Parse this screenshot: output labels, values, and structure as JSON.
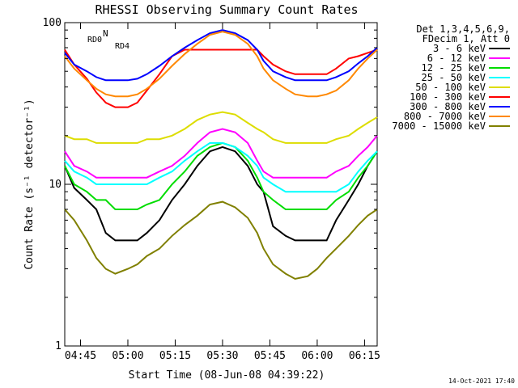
{
  "chart_data": {
    "type": "line",
    "title": "RHESSI Observing Summary Count Rates",
    "xlabel": "Start Time (08-Jun-08 04:39:22)",
    "ylabel": "Count Rate (s⁻¹ detector⁻¹)",
    "y_scale": "log",
    "ylim": [
      1,
      100
    ],
    "xlim_minutes_after_0440": [
      0,
      99
    ],
    "x_tick_labels": [
      "04:45",
      "05:00",
      "05:15",
      "05:30",
      "05:45",
      "06:00",
      "06:15"
    ],
    "x_tick_minutes": [
      5,
      20,
      35,
      50,
      65,
      80,
      95
    ],
    "y_tick_labels": [
      "1",
      "10",
      "100"
    ],
    "y_tick_values": [
      1,
      10,
      100
    ],
    "legend_position": "top-right",
    "legend_header": [
      "Det 1,3,4,5,6,9,",
      "FDecim 1, Att 0"
    ],
    "annotations": [
      {
        "text": "N",
        "color": "#00c000"
      },
      {
        "text": "RD0",
        "color": "#00a000"
      },
      {
        "text": "RD4",
        "color": "#00a000"
      }
    ],
    "series": [
      {
        "name": "3 - 6 keV",
        "color": "#000000",
        "x": [
          0,
          3,
          7,
          10,
          13,
          16,
          20,
          23,
          26,
          30,
          34,
          38,
          42,
          46,
          50,
          54,
          58,
          61,
          63,
          66,
          70,
          73,
          77,
          80,
          83,
          86,
          90,
          93,
          96,
          99
        ],
        "y": [
          13,
          9.5,
          8,
          7,
          5,
          4.5,
          4.5,
          4.5,
          5,
          6,
          8,
          10,
          13,
          16,
          17,
          16,
          13,
          10,
          9,
          5.5,
          4.8,
          4.5,
          4.5,
          4.5,
          4.5,
          6,
          8,
          10,
          13,
          16
        ]
      },
      {
        "name": "6 - 12 keV",
        "color": "#ff00ff",
        "x": [
          0,
          3,
          7,
          10,
          13,
          16,
          20,
          23,
          26,
          30,
          34,
          38,
          42,
          46,
          50,
          54,
          58,
          61,
          63,
          66,
          70,
          73,
          77,
          80,
          83,
          86,
          90,
          93,
          96,
          99
        ],
        "y": [
          16,
          13,
          12,
          11,
          11,
          11,
          11,
          11,
          11,
          12,
          13,
          15,
          18,
          21,
          22,
          21,
          18,
          14,
          12,
          11,
          11,
          11,
          11,
          11,
          11,
          12,
          13,
          15,
          17,
          20
        ]
      },
      {
        "name": "12 - 25 keV",
        "color": "#00dd00",
        "x": [
          0,
          3,
          7,
          10,
          13,
          16,
          20,
          23,
          26,
          30,
          34,
          38,
          42,
          46,
          50,
          54,
          58,
          61,
          63,
          66,
          70,
          73,
          77,
          80,
          83,
          86,
          90,
          93,
          96,
          99
        ],
        "y": [
          13,
          10,
          9,
          8,
          8,
          7,
          7,
          7,
          7.5,
          8,
          10,
          12,
          15,
          17,
          18,
          17,
          14,
          11,
          9,
          8,
          7,
          7,
          7,
          7,
          7,
          8,
          9,
          11,
          13,
          16
        ]
      },
      {
        "name": "25 - 50 keV",
        "color": "#00ffff",
        "x": [
          0,
          3,
          7,
          10,
          13,
          16,
          20,
          23,
          26,
          30,
          34,
          38,
          42,
          46,
          50,
          54,
          58,
          61,
          63,
          66,
          70,
          73,
          77,
          80,
          83,
          86,
          90,
          93,
          96,
          99
        ],
        "y": [
          14,
          12,
          11,
          10,
          10,
          10,
          10,
          10,
          10,
          11,
          12,
          14,
          16,
          18,
          18,
          17,
          15,
          13,
          11,
          10,
          9,
          9,
          9,
          9,
          9,
          9,
          10,
          12,
          14,
          16
        ]
      },
      {
        "name": "50 - 100 keV",
        "color": "#dddd00",
        "x": [
          0,
          3,
          7,
          10,
          13,
          16,
          20,
          23,
          26,
          30,
          34,
          38,
          42,
          46,
          50,
          54,
          58,
          61,
          63,
          66,
          70,
          73,
          77,
          80,
          83,
          86,
          90,
          93,
          96,
          99
        ],
        "y": [
          20,
          19,
          19,
          18,
          18,
          18,
          18,
          18,
          19,
          19,
          20,
          22,
          25,
          27,
          28,
          27,
          24,
          22,
          21,
          19,
          18,
          18,
          18,
          18,
          18,
          19,
          20,
          22,
          24,
          26
        ]
      },
      {
        "name": "100 - 300 keV",
        "color": "#ff0000",
        "x": [
          0,
          3,
          7,
          10,
          13,
          16,
          20,
          23,
          26,
          30,
          34,
          38,
          42,
          46,
          50,
          54,
          58,
          61,
          63,
          66,
          70,
          73,
          77,
          80,
          83,
          86,
          90,
          93,
          96,
          99
        ],
        "y": [
          68,
          55,
          45,
          37,
          32,
          30,
          30,
          32,
          38,
          48,
          62,
          68,
          68,
          68,
          68,
          68,
          68,
          68,
          62,
          55,
          50,
          48,
          48,
          48,
          48,
          52,
          60,
          62,
          65,
          68
        ]
      },
      {
        "name": "300 - 800 keV",
        "color": "#0000ff",
        "x": [
          0,
          3,
          7,
          10,
          13,
          16,
          20,
          23,
          26,
          30,
          34,
          38,
          42,
          46,
          50,
          54,
          58,
          61,
          63,
          66,
          70,
          73,
          77,
          80,
          83,
          86,
          90,
          93,
          96,
          99
        ],
        "y": [
          65,
          55,
          50,
          46,
          44,
          44,
          44,
          45,
          48,
          54,
          62,
          70,
          78,
          86,
          90,
          86,
          78,
          68,
          58,
          50,
          46,
          44,
          44,
          44,
          44,
          46,
          50,
          56,
          62,
          70
        ]
      },
      {
        "name": "800 - 7000 keV",
        "color": "#ff8800",
        "x": [
          0,
          3,
          7,
          10,
          13,
          16,
          20,
          23,
          26,
          30,
          34,
          38,
          42,
          46,
          50,
          54,
          58,
          61,
          63,
          66,
          70,
          73,
          77,
          80,
          83,
          86,
          90,
          93,
          96,
          99
        ],
        "y": [
          62,
          52,
          44,
          39,
          36,
          35,
          35,
          36,
          39,
          45,
          54,
          64,
          74,
          84,
          88,
          84,
          74,
          62,
          52,
          44,
          39,
          36,
          35,
          35,
          36,
          38,
          44,
          52,
          60,
          68
        ]
      },
      {
        "name": "7000 - 15000 keV",
        "color": "#808000",
        "x": [
          0,
          3,
          7,
          10,
          13,
          16,
          20,
          23,
          26,
          30,
          34,
          38,
          42,
          46,
          50,
          54,
          58,
          61,
          63,
          66,
          70,
          73,
          77,
          80,
          83,
          86,
          90,
          93,
          96,
          99
        ],
        "y": [
          7,
          6,
          4.5,
          3.5,
          3,
          2.8,
          3,
          3.2,
          3.6,
          4,
          4.8,
          5.6,
          6.4,
          7.5,
          7.8,
          7.2,
          6.2,
          5,
          4,
          3.2,
          2.8,
          2.6,
          2.7,
          3,
          3.5,
          4,
          4.8,
          5.6,
          6.4,
          7
        ]
      }
    ],
    "footer_date": "14-Oct-2021 17:40"
  }
}
